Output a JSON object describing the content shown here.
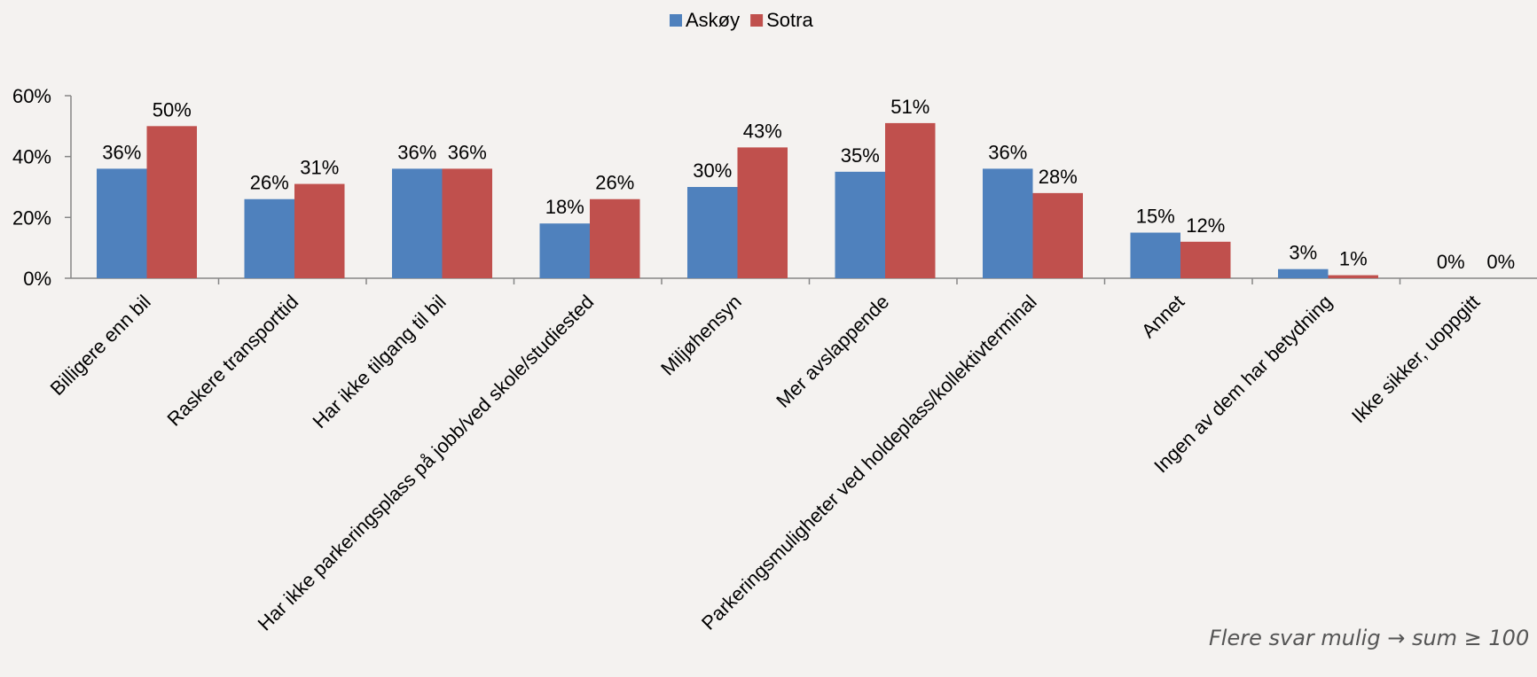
{
  "chart_data": {
    "type": "bar",
    "categories": [
      "Billigere enn bil",
      "Raskere transporttid",
      "Har ikke tilgang til bil",
      "Har ikke parkeringsplass på jobb/ved skole/studiested",
      "Miljøhensyn",
      "Mer avslappende",
      "Parkeringsmuligheter ved holdeplass/kollektivterminal",
      "Annet",
      "Ingen av dem har betydning",
      "Ikke sikker, uoppgitt"
    ],
    "series": [
      {
        "name": "Askøy",
        "color": "#4f81bd",
        "values": [
          36,
          26,
          36,
          18,
          30,
          35,
          36,
          15,
          3,
          0
        ]
      },
      {
        "name": "Sotra",
        "color": "#c0504d",
        "values": [
          50,
          31,
          36,
          26,
          43,
          51,
          28,
          12,
          1,
          0
        ]
      }
    ],
    "ylim": [
      0,
      60
    ],
    "yticks": [
      0,
      20,
      40,
      60
    ],
    "value_suffix": "%",
    "legend_position": "top-center",
    "grid": false
  },
  "footnote": "Flere svar mulig → sum ≥ 100"
}
